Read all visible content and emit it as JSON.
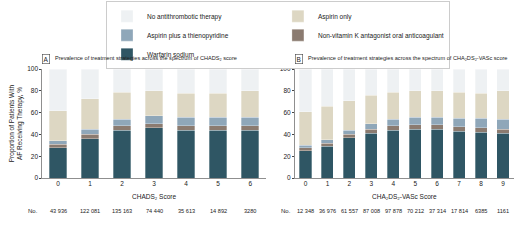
{
  "chart_data": [
    {
      "type": "bar",
      "panel": "A",
      "title": "Prevalence of treatment strategies across the spectrum of CHADS₂ score",
      "xlabel": "CHADS₂ Score",
      "ylabel": "Proportion of Patients With AF Receiving Therapy, %",
      "categories": [
        "0",
        "1",
        "2",
        "3",
        "4",
        "5",
        "6"
      ],
      "series": [
        {
          "name": "Warfarin sodium",
          "color": "#2f5664",
          "values": [
            28,
            36,
            44,
            46,
            44,
            44,
            44
          ]
        },
        {
          "name": "Non-vitamin K antagonist oral anticoagulant",
          "color": "#8b7b70",
          "values": [
            3,
            4,
            4,
            4,
            4,
            4,
            4
          ]
        },
        {
          "name": "Aspirin plus a thienopyridine",
          "color": "#8fa7b9",
          "values": [
            3,
            5,
            6,
            7,
            8,
            8,
            8
          ]
        },
        {
          "name": "Aspirin only",
          "color": "#ddd7c3",
          "values": [
            28,
            28,
            25,
            23,
            22,
            22,
            24
          ]
        },
        {
          "name": "No antithrombotic therapy",
          "color": "#eef1f3",
          "values": [
            38,
            27,
            21,
            20,
            22,
            22,
            20
          ]
        }
      ],
      "counts_label": "No.",
      "counts": [
        "43 936",
        "122 081",
        "135 163",
        "74 440",
        "35 613",
        "14 892",
        "3280"
      ],
      "ylim": [
        0,
        100
      ],
      "yticks": [
        0,
        20,
        40,
        60,
        80,
        100
      ],
      "stacked": true,
      "grid": false,
      "legend": "top"
    },
    {
      "type": "bar",
      "panel": "B",
      "title": "Prevalence of treatment strategies across the spectrum of CHA₂DS₂-VASc score",
      "xlabel": "CHA₂DS₂-VASc Score",
      "categories": [
        "0",
        "1",
        "2",
        "3",
        "4",
        "5",
        "6",
        "7",
        "8",
        "9"
      ],
      "series": [
        {
          "name": "Warfarin sodium",
          "color": "#2f5664",
          "values": [
            25,
            29,
            37,
            41,
            44,
            45,
            45,
            43,
            42,
            41
          ]
        },
        {
          "name": "Non-vitamin K antagonist oral anticoagulant",
          "color": "#8b7b70",
          "values": [
            3,
            3,
            3,
            4,
            4,
            4,
            4,
            4,
            4,
            4
          ]
        },
        {
          "name": "Aspirin plus a thienopyridine",
          "color": "#8fa7b9",
          "values": [
            2,
            3,
            4,
            5,
            6,
            7,
            7,
            8,
            9,
            9
          ]
        },
        {
          "name": "Aspirin only",
          "color": "#ddd7c3",
          "values": [
            31,
            31,
            27,
            26,
            25,
            24,
            24,
            24,
            23,
            26
          ]
        },
        {
          "name": "No antithrombotic therapy",
          "color": "#eef1f3",
          "values": [
            39,
            34,
            29,
            24,
            21,
            20,
            20,
            21,
            22,
            20
          ]
        }
      ],
      "counts_label": "No.",
      "counts": [
        "12 348",
        "36 976",
        "61 557",
        "87 008",
        "97 878",
        "70 212",
        "37 314",
        "17 814",
        "6385",
        "1161"
      ],
      "ylim": [
        0,
        100
      ],
      "yticks": [
        0,
        20,
        40,
        60,
        80,
        100
      ],
      "stacked": true,
      "grid": false,
      "legend": "top"
    }
  ]
}
